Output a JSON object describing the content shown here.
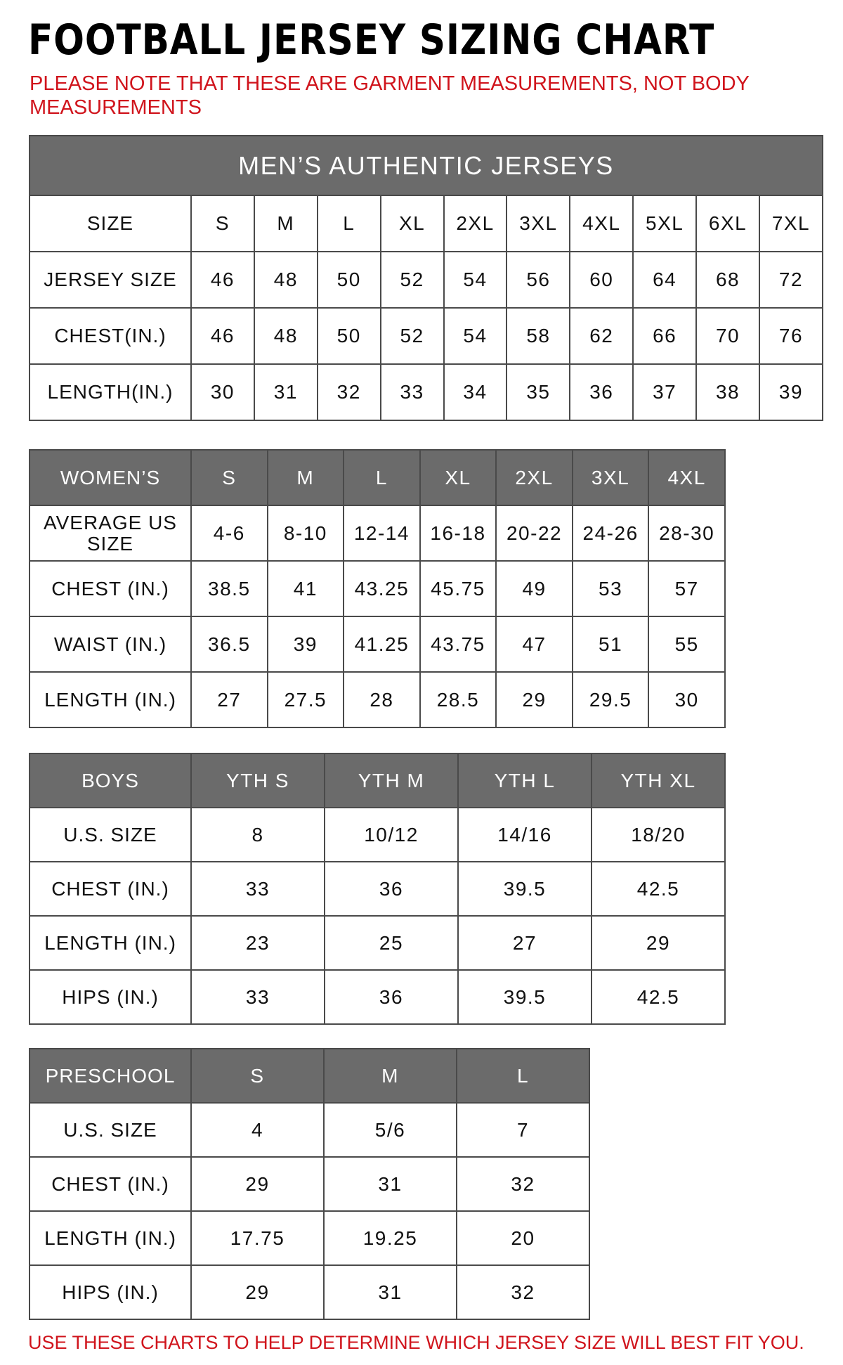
{
  "title": "FOOTBALL JERSEY SIZING CHART",
  "note": "PLEASE NOTE THAT THESE ARE GARMENT MEASUREMENTS, NOT BODY MEASUREMENTS",
  "tables": [
    {
      "caption": "MEN’S AUTHENTIC JERSEYS",
      "header": [
        "SIZE",
        "S",
        "M",
        "L",
        "XL",
        "2XL",
        "3XL",
        "4XL",
        "5XL",
        "6XL",
        "7XL"
      ],
      "rows": [
        [
          "JERSEY SIZE",
          "46",
          "48",
          "50",
          "52",
          "54",
          "56",
          "60",
          "64",
          "68",
          "72"
        ],
        [
          "CHEST(IN.)",
          "46",
          "48",
          "50",
          "52",
          "54",
          "58",
          "62",
          "66",
          "70",
          "76"
        ],
        [
          "LENGTH(IN.)",
          "30",
          "31",
          "32",
          "33",
          "34",
          "35",
          "36",
          "37",
          "38",
          "39"
        ]
      ]
    },
    {
      "header": [
        "WOMEN’S",
        "S",
        "M",
        "L",
        "XL",
        "2XL",
        "3XL",
        "4XL"
      ],
      "rows": [
        [
          "AVERAGE US SIZE",
          "4-6",
          "8-10",
          "12-14",
          "16-18",
          "20-22",
          "24-26",
          "28-30"
        ],
        [
          "CHEST (IN.)",
          "38.5",
          "41",
          "43.25",
          "45.75",
          "49",
          "53",
          "57"
        ],
        [
          "WAIST (IN.)",
          "36.5",
          "39",
          "41.25",
          "43.75",
          "47",
          "51",
          "55"
        ],
        [
          "LENGTH (IN.)",
          "27",
          "27.5",
          "28",
          "28.5",
          "29",
          "29.5",
          "30"
        ]
      ]
    },
    {
      "header": [
        "BOYS",
        "YTH S",
        "YTH M",
        "YTH L",
        "YTH XL"
      ],
      "rows": [
        [
          "U.S. SIZE",
          "8",
          "10/12",
          "14/16",
          "18/20"
        ],
        [
          "CHEST (IN.)",
          "33",
          "36",
          "39.5",
          "42.5"
        ],
        [
          "LENGTH (IN.)",
          "23",
          "25",
          "27",
          "29"
        ],
        [
          "HIPS (IN.)",
          "33",
          "36",
          "39.5",
          "42.5"
        ]
      ]
    },
    {
      "header": [
        "PRESCHOOL",
        "S",
        "M",
        "L"
      ],
      "rows": [
        [
          "U.S. SIZE",
          "4",
          "5/6",
          "7"
        ],
        [
          "CHEST (IN.)",
          "29",
          "31",
          "32"
        ],
        [
          "LENGTH (IN.)",
          "17.75",
          "19.25",
          "20"
        ],
        [
          "HIPS (IN.)",
          "29",
          "31",
          "32"
        ]
      ]
    }
  ],
  "footer": "USE THESE CHARTS TO HELP DETERMINE WHICH JERSEY SIZE WILL BEST FIT YOU."
}
